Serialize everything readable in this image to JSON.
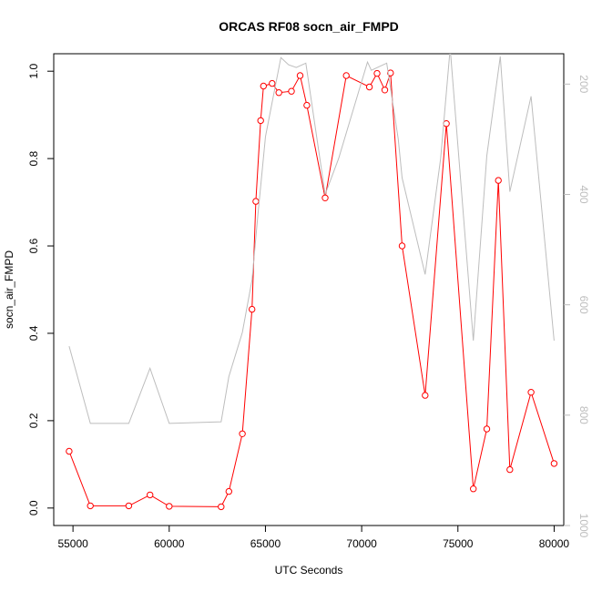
{
  "chart_data": {
    "type": "line",
    "title": "ORCAS RF08 socn_air_FMPD",
    "xlabel": "UTC Seconds",
    "ylabel": "socn_air_FMPD",
    "xlim": [
      54000,
      80500
    ],
    "ylim": [
      -0.04,
      1.04
    ],
    "y2lim": [
      1000,
      145
    ],
    "y2_reversed": true,
    "x_ticks": [
      55000,
      60000,
      65000,
      70000,
      75000,
      80000
    ],
    "y_ticks": [
      0.0,
      0.2,
      0.4,
      0.6,
      0.8,
      1.0
    ],
    "y_tick_labels": [
      "0.0",
      "0.2",
      "0.4",
      "0.6",
      "0.8",
      "1.0"
    ],
    "y2_ticks": [
      200,
      400,
      600,
      800,
      1000
    ],
    "grid": false,
    "series": [
      {
        "axis": "left",
        "color": "#ff0000",
        "marker": "open-circle",
        "x": [
          54800,
          55900,
          57900,
          59000,
          60000,
          62700,
          63100,
          63800,
          64300,
          64500,
          64750,
          64900,
          65350,
          65700,
          66350,
          66800,
          67150,
          68100,
          69200,
          70400,
          70800,
          71200,
          71500,
          72100,
          73300,
          74400,
          75800,
          76500,
          77100,
          77700,
          78800,
          80000
        ],
        "values": [
          0.13,
          0.005,
          0.005,
          0.03,
          0.004,
          0.003,
          0.038,
          0.17,
          0.455,
          0.702,
          0.887,
          0.966,
          0.972,
          0.951,
          0.954,
          0.99,
          0.922,
          0.71,
          0.99,
          0.964,
          0.995,
          0.957,
          0.996,
          0.6,
          0.258,
          0.88,
          0.044,
          0.181,
          0.75,
          0.088,
          0.265,
          0.102
        ]
      },
      {
        "axis": "right",
        "color": "#bdbdbd",
        "x": [
          54800,
          55900,
          57900,
          59000,
          60000,
          62700,
          63100,
          63800,
          64300,
          64600,
          65000,
          65800,
          66200,
          66600,
          67100,
          68100,
          68800,
          70300,
          70500,
          71300,
          71900,
          72100,
          73300,
          74100,
          74600,
          75800,
          76500,
          77200,
          77700,
          78800,
          80000
        ],
        "values": [
          675,
          815,
          815,
          715,
          815,
          812,
          730,
          650,
          555,
          440,
          295,
          152,
          165,
          170,
          162,
          400,
          335,
          160,
          175,
          162,
          300,
          370,
          545,
          335,
          135,
          665,
          330,
          150,
          395,
          222,
          665
        ]
      }
    ]
  }
}
